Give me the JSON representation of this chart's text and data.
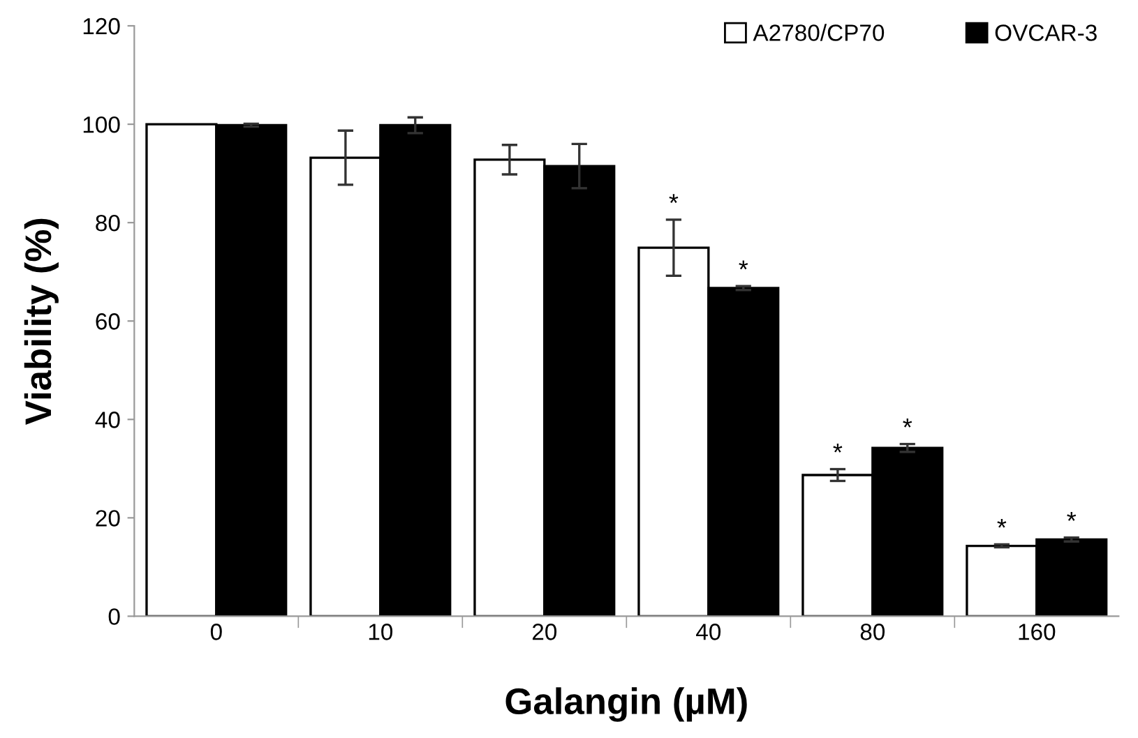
{
  "chart_data": {
    "type": "bar",
    "xlabel": "Galangin (µM)",
    "ylabel": "Viability (%)",
    "categories": [
      "0",
      "10",
      "20",
      "40",
      "80",
      "160"
    ],
    "series": [
      {
        "name": "A2780/CP70",
        "color": "#ffffff",
        "values": [
          100,
          93.2,
          92.8,
          74.9,
          28.7,
          14.3
        ],
        "errors": [
          null,
          5.5,
          3,
          5.7,
          1.2,
          0.3
        ],
        "value_labels": [
          null,
          null,
          null,
          "*",
          "*",
          "*"
        ]
      },
      {
        "name": "OVCAR-3",
        "color": "#000000",
        "values": [
          99.8,
          99.8,
          91.5,
          66.7,
          34.2,
          15.6
        ],
        "errors": [
          0.3,
          1.6,
          4.5,
          0.4,
          0.8,
          0.4
        ],
        "value_labels": [
          null,
          null,
          null,
          "*",
          "*",
          "*"
        ]
      }
    ],
    "ylim": [
      0,
      120
    ],
    "yticks": [
      0,
      20,
      40,
      60,
      80,
      100,
      120
    ],
    "grid": false,
    "legend": "top right"
  }
}
